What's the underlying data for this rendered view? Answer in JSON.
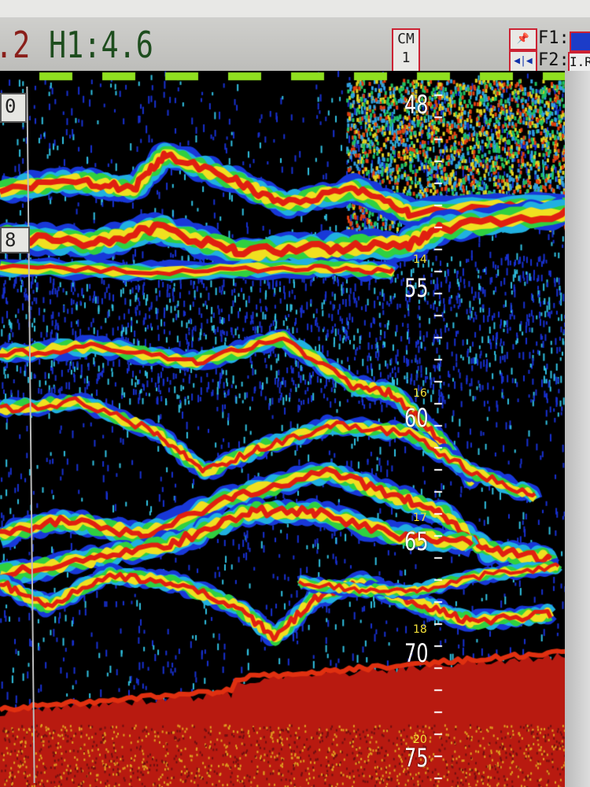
{
  "header": {
    "range_partial": ".2",
    "h1_label": "H1:4.6",
    "channel": {
      "label": "CM",
      "value": "1"
    },
    "f1_label": "F1:",
    "f2_label": "F2:",
    "f2_value": "I.R",
    "icons": [
      "pin-icon",
      "shift-arrows-icon"
    ]
  },
  "left_panel": {
    "values": [
      "0",
      "8"
    ]
  },
  "depth_scale": {
    "major": [
      "48",
      "55",
      "60",
      "65",
      "70",
      "75"
    ],
    "minor": [
      "14",
      "16",
      "17",
      "18",
      "20"
    ]
  },
  "colors": {
    "strong": "#e02010",
    "medium": "#f0e020",
    "weak": "#30d040",
    "faint": "#20a0e0",
    "background": "#000000",
    "marker": "#90e020"
  }
}
